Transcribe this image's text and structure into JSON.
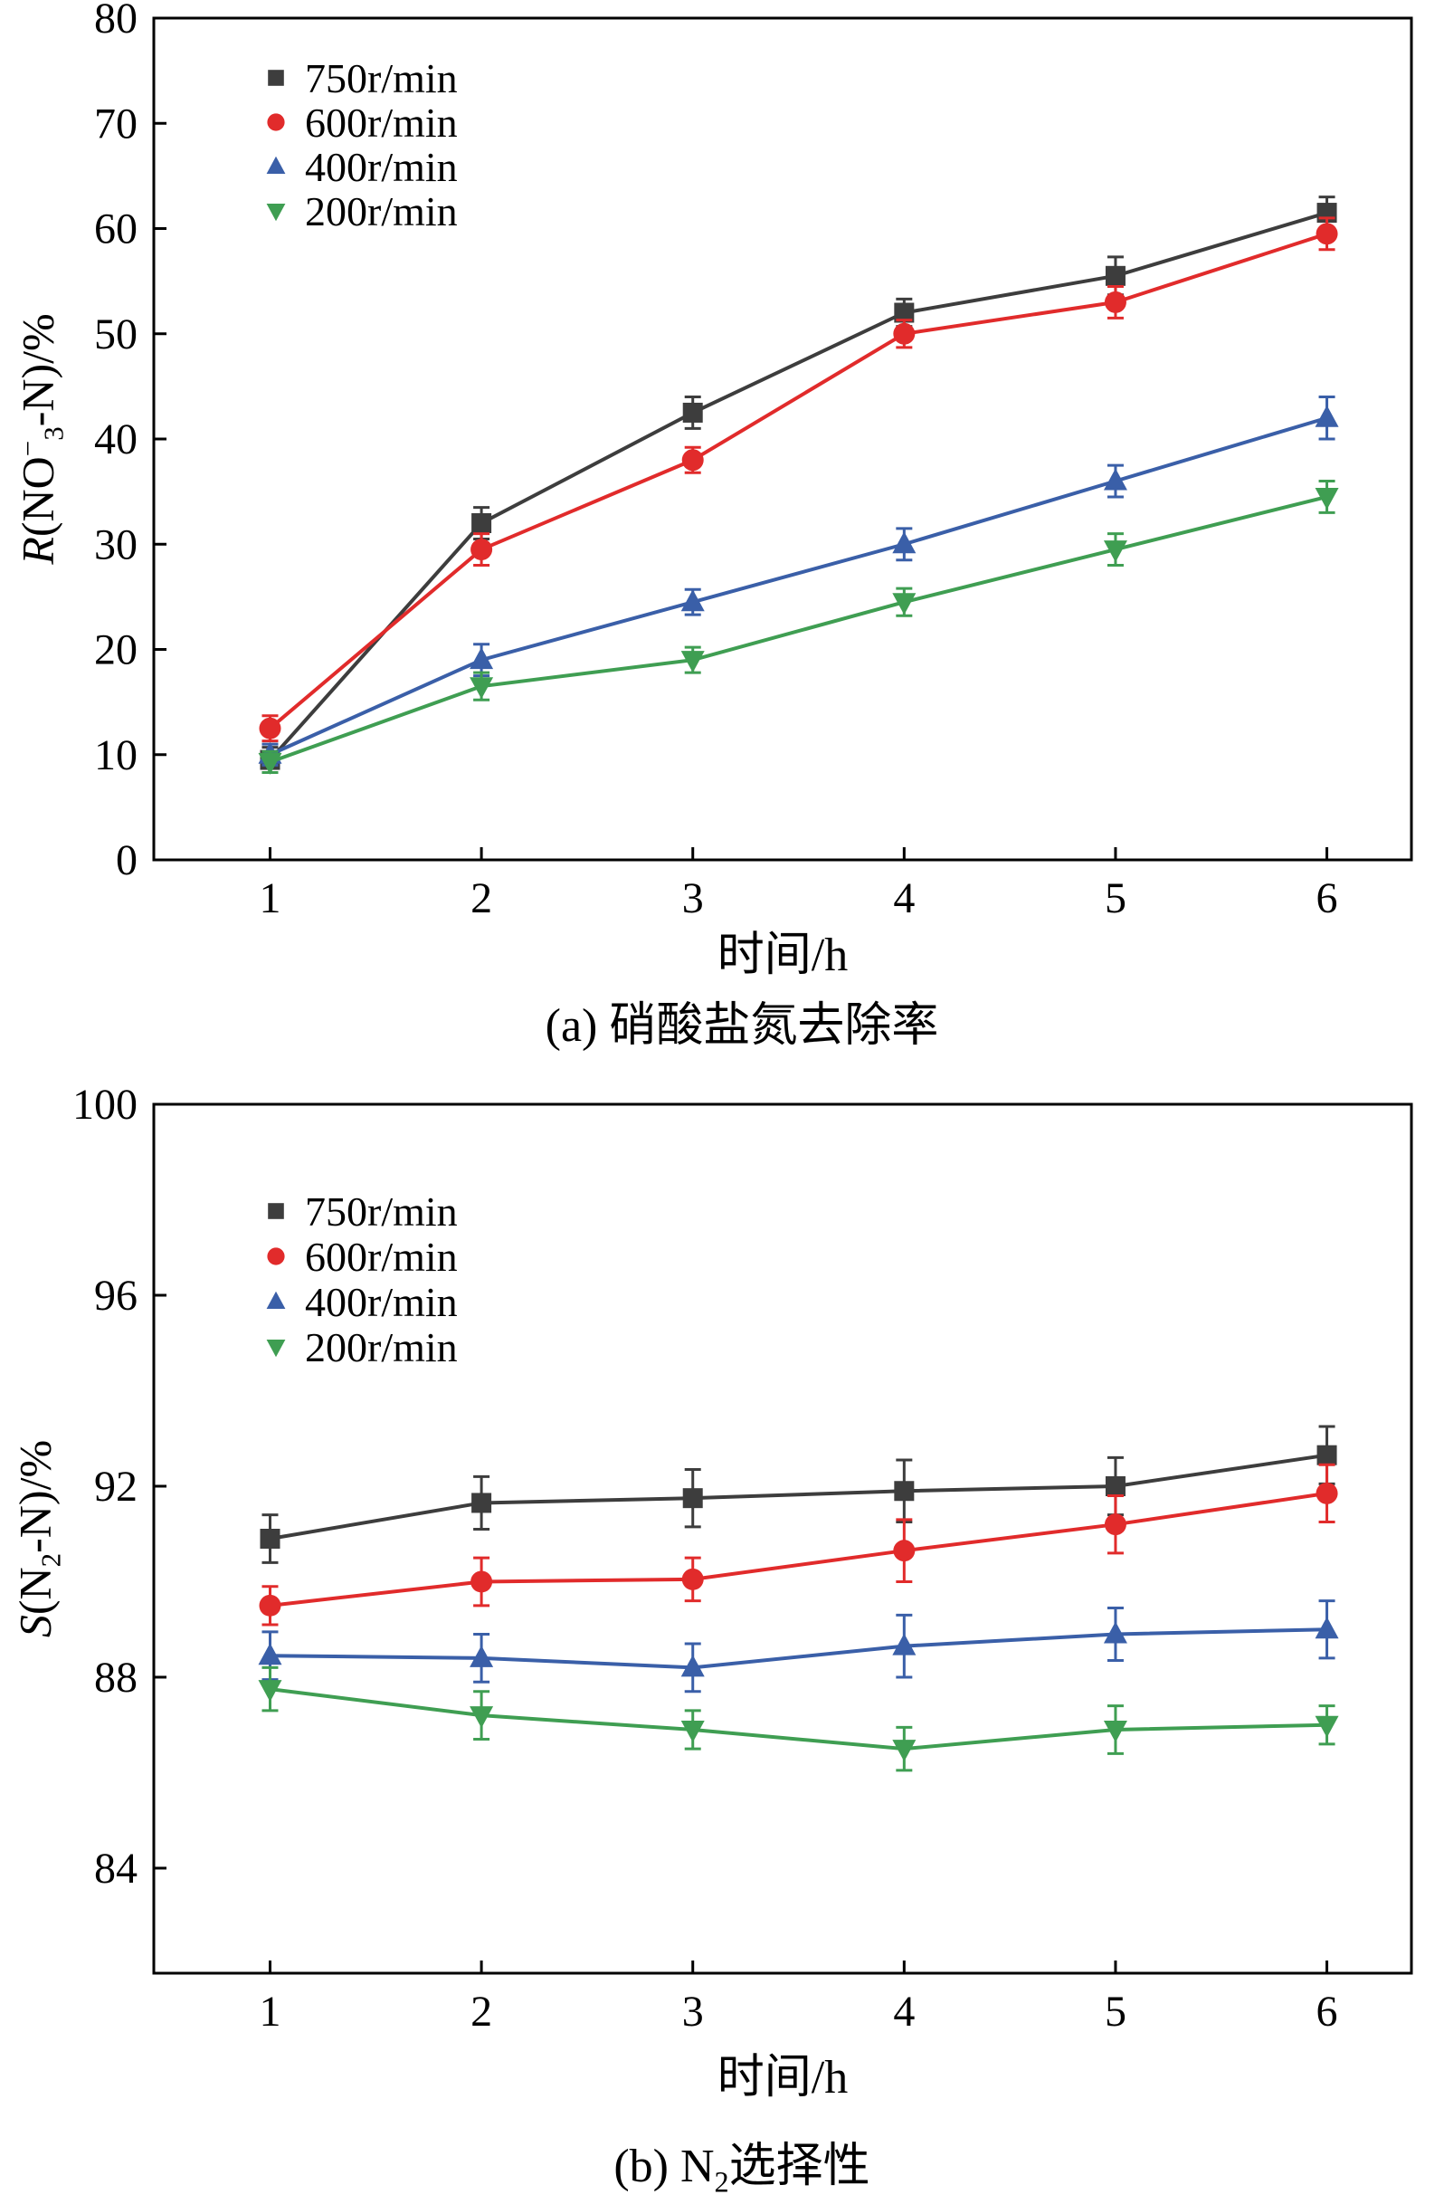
{
  "page": {
    "background": "#ffffff",
    "text_color": "#000000"
  },
  "chart_data": [
    {
      "id": "a",
      "type": "line",
      "caption_parts": {
        "prefix": "(a) ",
        "sub": "",
        "rest": "硝酸盐氮去除率"
      },
      "xlabel": "时间/h",
      "ylabel_parts": {
        "italic": "R",
        "pre": "(NO",
        "sup": "−",
        "sub": "3",
        "post": "-N)/%"
      },
      "x": [
        1,
        2,
        3,
        4,
        5,
        6
      ],
      "xticks": [
        1,
        2,
        3,
        4,
        5,
        6
      ],
      "yticks": [
        0,
        10,
        20,
        30,
        40,
        50,
        60,
        70,
        80
      ],
      "xlim": [
        0.45,
        6.4
      ],
      "ylim": [
        0,
        80
      ],
      "grid": false,
      "legend_position": "top-left",
      "series": [
        {
          "name": "750r/min",
          "color": "#3d3d3d",
          "marker": "square",
          "values": [
            9.5,
            32,
            42.5,
            52,
            55.5,
            61.5
          ],
          "errors": [
            1.2,
            1.5,
            1.5,
            1.3,
            1.8,
            1.5
          ]
        },
        {
          "name": "600r/min",
          "color": "#e12b2b",
          "marker": "circle",
          "values": [
            12.5,
            29.5,
            38,
            50,
            53,
            59.5
          ],
          "errors": [
            1.2,
            1.5,
            1.2,
            1.3,
            1.5,
            1.5
          ]
        },
        {
          "name": "400r/min",
          "color": "#3a5fa8",
          "marker": "triangle-up",
          "values": [
            10,
            19,
            24.5,
            30,
            36,
            42
          ],
          "errors": [
            1.0,
            1.5,
            1.2,
            1.5,
            1.5,
            2.0
          ]
        },
        {
          "name": "200r/min",
          "color": "#3f9e52",
          "marker": "triangle-down",
          "values": [
            9.3,
            16.5,
            19,
            24.5,
            29.5,
            34.5
          ],
          "errors": [
            1.0,
            1.3,
            1.2,
            1.3,
            1.5,
            1.5
          ]
        }
      ]
    },
    {
      "id": "b",
      "type": "line",
      "caption_parts": {
        "prefix": "(b) N",
        "sub": "2",
        "rest": "选择性"
      },
      "xlabel": "时间/h",
      "ylabel_parts": {
        "italic": "S",
        "pre": "(N",
        "sup": "",
        "sub": "2",
        "post": "-N)/%"
      },
      "x": [
        1,
        2,
        3,
        4,
        5,
        6
      ],
      "xticks": [
        1,
        2,
        3,
        4,
        5,
        6
      ],
      "yticks": [
        84,
        88,
        92,
        96,
        100
      ],
      "xlim": [
        0.45,
        6.4
      ],
      "ylim": [
        81.8,
        100
      ],
      "grid": false,
      "legend_position": "top-left",
      "series": [
        {
          "name": "750r/min",
          "color": "#3d3d3d",
          "marker": "square",
          "values": [
            90.9,
            91.65,
            91.75,
            91.9,
            92.0,
            92.65
          ],
          "errors": [
            0.5,
            0.55,
            0.6,
            0.65,
            0.6,
            0.6
          ]
        },
        {
          "name": "600r/min",
          "color": "#e12b2b",
          "marker": "circle",
          "values": [
            89.5,
            90.0,
            90.05,
            90.65,
            91.2,
            91.85
          ],
          "errors": [
            0.4,
            0.5,
            0.45,
            0.65,
            0.6,
            0.6
          ]
        },
        {
          "name": "400r/min",
          "color": "#3a5fa8",
          "marker": "triangle-up",
          "values": [
            88.45,
            88.4,
            88.2,
            88.65,
            88.9,
            89.0
          ],
          "errors": [
            0.5,
            0.5,
            0.5,
            0.65,
            0.55,
            0.6
          ]
        },
        {
          "name": "200r/min",
          "color": "#3f9e52",
          "marker": "triangle-down",
          "values": [
            87.75,
            87.2,
            86.9,
            86.5,
            86.9,
            87.0
          ],
          "errors": [
            0.45,
            0.5,
            0.4,
            0.45,
            0.5,
            0.4
          ]
        }
      ]
    }
  ]
}
